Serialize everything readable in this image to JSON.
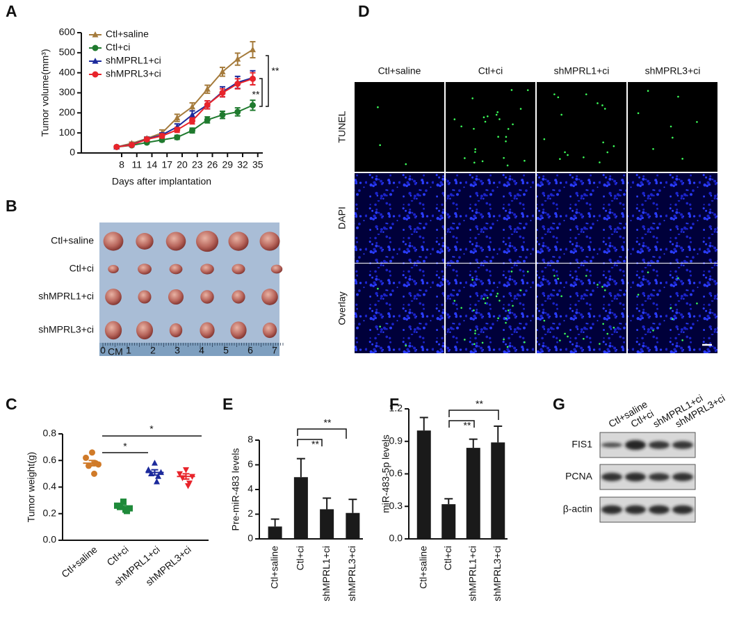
{
  "chart_data": [
    {
      "panel": "A",
      "type": "line",
      "xlabel": "Days after implantation",
      "ylabel": "Tumor volume(mm³)",
      "x": [
        7,
        10,
        13,
        16,
        19,
        22,
        25,
        28,
        31,
        34
      ],
      "xlim": [
        0,
        36
      ],
      "xticks": [
        8,
        11,
        14,
        17,
        20,
        23,
        26,
        29,
        32,
        35
      ],
      "ylim": [
        0,
        600
      ],
      "yticks": [
        0,
        100,
        200,
        300,
        400,
        500,
        600
      ],
      "legend": "upper left",
      "series": [
        {
          "name": "Ctl+saline",
          "color": "#a57b3c",
          "marker": "triangle",
          "values": [
            30,
            48,
            72,
            100,
            175,
            230,
            318,
            405,
            468,
            515
          ],
          "errors": [
            4,
            6,
            8,
            15,
            18,
            20,
            20,
            22,
            30,
            40
          ]
        },
        {
          "name": "Ctl+ci",
          "color": "#1f7a2e",
          "marker": "circle",
          "values": [
            30,
            38,
            52,
            65,
            78,
            112,
            165,
            190,
            205,
            238
          ],
          "errors": [
            4,
            5,
            6,
            8,
            10,
            12,
            15,
            18,
            20,
            25
          ]
        },
        {
          "name": "shMPRL1+ci",
          "color": "#1c2a9c",
          "marker": "triangle",
          "values": [
            30,
            42,
            70,
            90,
            130,
            190,
            240,
            305,
            352,
            375
          ],
          "errors": [
            4,
            5,
            8,
            10,
            15,
            20,
            20,
            25,
            30,
            35
          ]
        },
        {
          "name": "shMPRL3+ci",
          "color": "#e8242b",
          "marker": "circle",
          "values": [
            30,
            40,
            68,
            85,
            115,
            160,
            240,
            300,
            345,
            370
          ],
          "errors": [
            4,
            5,
            8,
            10,
            12,
            15,
            20,
            20,
            25,
            30
          ]
        }
      ],
      "annotations": [
        "**",
        "**"
      ]
    },
    {
      "panel": "C",
      "type": "dot",
      "ylabel": "Tumor weight(g)",
      "categories": [
        "Ctl+saline",
        "Ctl+ci",
        "shMPRL1+ci",
        "shMPRL3+ci"
      ],
      "ylim": [
        0,
        0.8
      ],
      "yticks": [
        {
          "value": 0,
          "label": "0.0"
        },
        0.2,
        0.4,
        0.6,
        0.8
      ],
      "colors": [
        "#d07a28",
        "#1f8a3a",
        "#1c2a9c",
        "#e8242b"
      ],
      "markers": [
        "circle",
        "square",
        "triangle",
        "triangle-down"
      ],
      "values": [
        [
          0.66,
          0.62,
          0.57,
          0.56,
          0.58,
          0.5
        ],
        [
          0.29,
          0.26,
          0.24,
          0.25,
          0.22,
          0.23
        ],
        [
          0.58,
          0.53,
          0.51,
          0.5,
          0.48,
          0.44
        ],
        [
          0.53,
          0.5,
          0.48,
          0.47,
          0.43,
          0.41
        ]
      ],
      "means": [
        0.58,
        0.25,
        0.51,
        0.48
      ],
      "errors": [
        0.02,
        0.01,
        0.02,
        0.02
      ],
      "annotations": [
        "*",
        "*"
      ]
    },
    {
      "panel": "E",
      "type": "bar",
      "ylabel": "Pre-miR-483 levels",
      "categories": [
        "Ctl+saline",
        "Ctl+ci",
        "shMPRL1+ci",
        "shMPRL3+ci"
      ],
      "color": "#1a1a1a",
      "values": [
        1.0,
        5.0,
        2.4,
        2.1
      ],
      "errors": [
        0.6,
        1.5,
        0.9,
        1.1
      ],
      "ylim": [
        0,
        8
      ],
      "yticks": [
        0,
        2,
        4,
        6,
        8
      ],
      "annotations": [
        "**",
        "**"
      ]
    },
    {
      "panel": "F",
      "type": "bar",
      "ylabel": "miR-483-5p levels",
      "categories": [
        "Ctl+saline",
        "Ctl+ci",
        "shMPRL1+ci",
        "shMPRL3+ci"
      ],
      "color": "#1a1a1a",
      "values": [
        1.0,
        0.32,
        0.84,
        0.89
      ],
      "errors": [
        0.12,
        0.05,
        0.08,
        0.15
      ],
      "ylim": [
        0,
        1.2
      ],
      "yticks": [
        {
          "value": 0,
          "label": "0.0"
        },
        0.3,
        0.6,
        0.9,
        1.2
      ],
      "annotations": [
        "**",
        "**"
      ]
    }
  ],
  "tumor_photo": {
    "panel": "B",
    "rows": [
      "Ctl+saline",
      "Ctl+ci",
      "shMPRL1+ci",
      "shMPRL3+ci"
    ],
    "ruler": [
      "0",
      "1",
      "2",
      "3",
      "4",
      "5",
      "6",
      "7"
    ],
    "unit": "CM"
  },
  "microscopy": {
    "panel": "D",
    "columns": [
      "Ctl+saline",
      "Ctl+ci",
      "shMPRL1+ci",
      "shMPRL3+ci"
    ],
    "rows": [
      "TUNEL",
      "DAPI",
      "Overlay"
    ]
  },
  "western_blot": {
    "panel": "G",
    "lanes": [
      "Ctl+saline",
      "Ctl+ci",
      "shMPRL1+ci",
      "shMPRL3+ci"
    ],
    "proteins": [
      "FIS1",
      "PCNA",
      "β-actin"
    ]
  }
}
